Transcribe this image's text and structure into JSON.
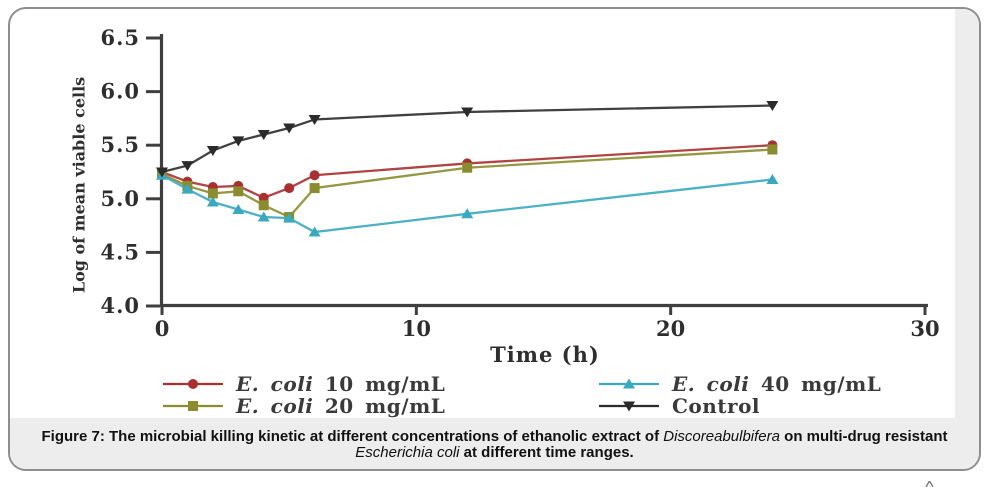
{
  "figure": {
    "caption": {
      "line1_bold": "Figure 7: The microbial killing kinetic at different concentrations of ethanolic extract of ",
      "line1_italic": "Discoreabulbifera",
      "line1_bold2": " on multi-drug resistant",
      "line2_italic": "Escherichia coli",
      "line2_bold": " at different time ranges."
    }
  },
  "chart_data": {
    "type": "line",
    "title": "",
    "xlabel": "Time (h)",
    "ylabel": "Log of mean viable cells",
    "x": [
      0,
      1,
      2,
      3,
      4,
      5,
      6,
      12,
      24
    ],
    "xlim": [
      0,
      30
    ],
    "ylim": [
      4.0,
      6.5
    ],
    "x_ticks": [
      0,
      10,
      20,
      30
    ],
    "y_ticks": [
      6.5,
      6.0,
      5.5,
      5.0,
      4.5,
      4.0
    ],
    "grid": false,
    "legend_position": "bottom",
    "axis_color": "#3f3f3f",
    "series": [
      {
        "name_italic": "E. coli",
        "name_rest": " 10 mg/mL",
        "marker": "circle",
        "color": "#a93030",
        "values": [
          5.25,
          5.16,
          5.11,
          5.12,
          5.01,
          5.1,
          5.22,
          5.33,
          5.5
        ]
      },
      {
        "name_italic": "E. coli",
        "name_rest": " 20 mg/mL",
        "marker": "square",
        "color": "#8b8c2f",
        "values": [
          5.23,
          5.12,
          5.05,
          5.07,
          4.94,
          4.83,
          5.1,
          5.29,
          5.46
        ]
      },
      {
        "name_italic": "E. coli",
        "name_rest": " 40 mg/mL",
        "marker": "triangle-up",
        "color": "#39a9bf",
        "values": [
          5.22,
          5.09,
          4.97,
          4.9,
          4.83,
          4.82,
          4.69,
          4.86,
          5.18
        ]
      },
      {
        "name_italic": "",
        "name_rest": "Control",
        "marker": "triangle-down",
        "color": "#2b2b2b",
        "values": [
          5.25,
          5.31,
          5.45,
          5.54,
          5.6,
          5.66,
          5.74,
          5.81,
          5.87
        ]
      }
    ]
  }
}
